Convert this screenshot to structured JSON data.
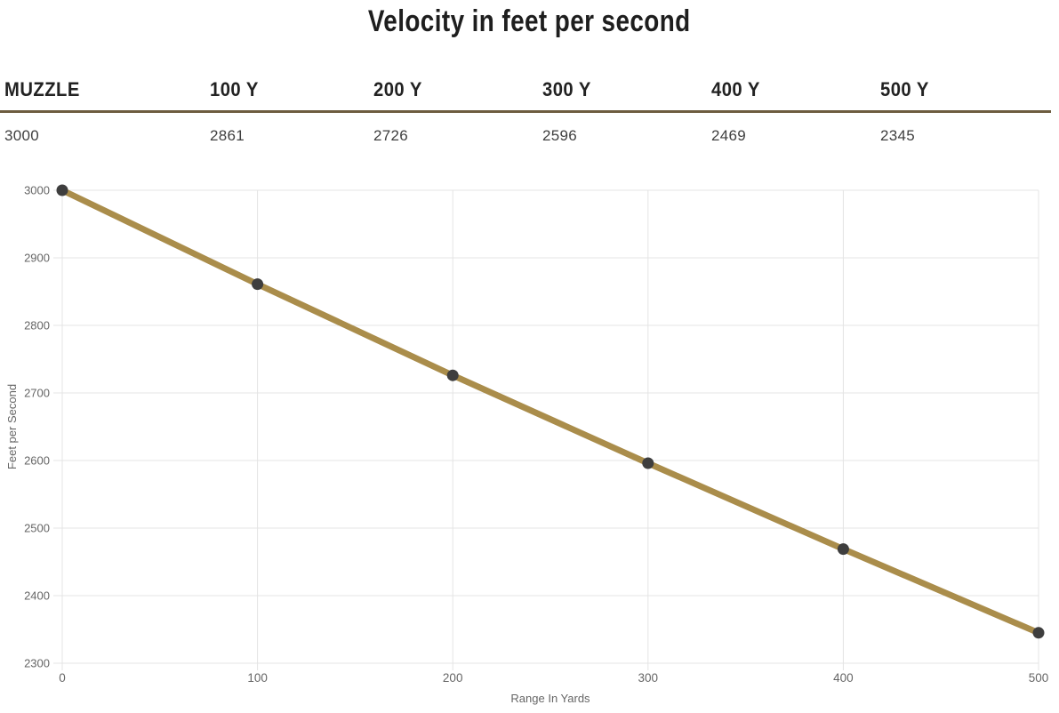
{
  "title": "Velocity in feet per second",
  "table": {
    "headers": [
      "MUZZLE",
      "100 Y",
      "200 Y",
      "300 Y",
      "400 Y",
      "500 Y"
    ],
    "values": [
      "3000",
      "2861",
      "2726",
      "2596",
      "2469",
      "2345"
    ]
  },
  "chart_data": {
    "type": "line",
    "x": [
      0,
      100,
      200,
      300,
      400,
      500
    ],
    "series": [
      {
        "name": "Velocity",
        "values": [
          3000,
          2861,
          2726,
          2596,
          2469,
          2345
        ]
      }
    ],
    "title": "Velocity in feet per second",
    "xlabel": "Range In Yards",
    "ylabel": "Feet per Second",
    "xlim": [
      0,
      500
    ],
    "ylim": [
      2300,
      3000
    ],
    "x_ticks": [
      0,
      100,
      200,
      300,
      400,
      500
    ],
    "y_ticks": [
      2300,
      2400,
      2500,
      2600,
      2700,
      2800,
      2900,
      3000
    ],
    "grid": true,
    "legend": "none",
    "line_color": "#aa8d4b",
    "point_color": "#3e3e3e",
    "grid_color": "#e4e4e4",
    "tick_color": "#666666"
  },
  "colors": {
    "title_color": "#1e1e1e",
    "table_border": "#6d5c3f",
    "header_text": "#222222",
    "value_text": "#3f3f3f"
  }
}
